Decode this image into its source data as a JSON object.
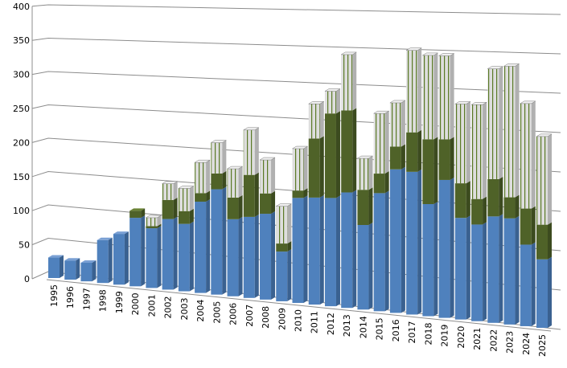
{
  "chart_data": {
    "type": "bar",
    "stacked": true,
    "three_d": true,
    "title": "",
    "xlabel": "",
    "ylabel": "",
    "ylim": [
      0,
      400
    ],
    "yticks": [
      0,
      50,
      100,
      150,
      200,
      250,
      300,
      350,
      400
    ],
    "grid": true,
    "legend": "none",
    "categories": [
      "1995",
      "1996",
      "1997",
      "1998",
      "1999",
      "2000",
      "2001",
      "2002",
      "2003",
      "2004",
      "2005",
      "2006",
      "2007",
      "2008",
      "2009",
      "2010",
      "2011",
      "2012",
      "2013",
      "2014",
      "2015",
      "2016",
      "2017",
      "2018",
      "2019",
      "2020",
      "2021",
      "2022",
      "2023",
      "2024",
      "2025"
    ],
    "series": [
      {
        "color": "#4f81bd",
        "values": [
          30,
          28,
          27,
          62,
          73,
          98,
          85,
          100,
          95,
          128,
          147,
          107,
          112,
          118,
          68,
          143,
          145,
          146,
          155,
          113,
          157,
          190,
          188,
          147,
          180,
          132,
          125,
          137,
          136,
          104,
          87
        ]
      },
      {
        "color": "#4f6228",
        "values": [
          0,
          0,
          0,
          0,
          0,
          10,
          3,
          27,
          18,
          12,
          22,
          30,
          58,
          28,
          11,
          10,
          80,
          114,
          110,
          47,
          26,
          30,
          52,
          85,
          53,
          45,
          33,
          48,
          27,
          46,
          44
        ]
      },
      {
        "color": "#e0e0e0",
        "pattern": "vertical-green-stripes",
        "values": [
          0,
          0,
          0,
          0,
          0,
          0,
          12,
          23,
          32,
          43,
          43,
          40,
          62,
          46,
          51,
          57,
          47,
          30,
          75,
          42,
          80,
          58,
          108,
          110,
          109,
          103,
          122,
          142,
          168,
          134,
          112
        ]
      }
    ]
  }
}
